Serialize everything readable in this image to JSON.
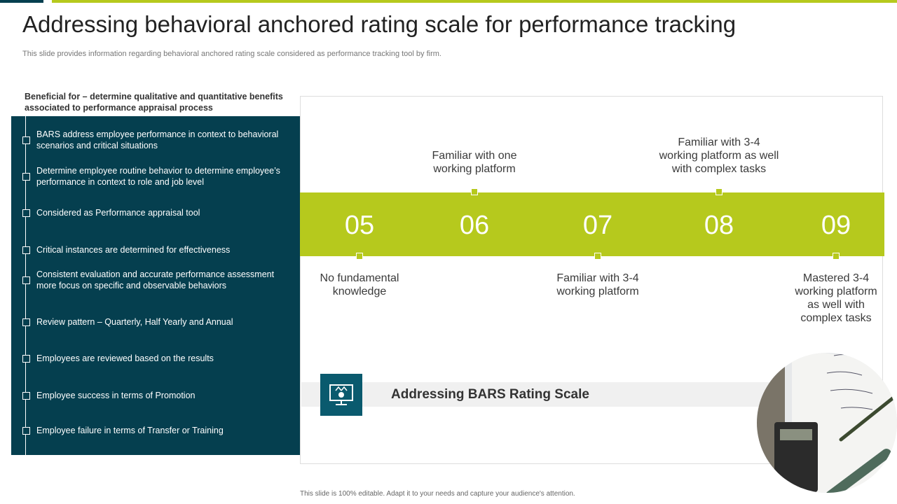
{
  "header": {
    "title": "Addressing behavioral anchored rating scale for performance tracking",
    "subtitle": "This slide provides information regarding behavioral anchored rating scale considered as performance tracking tool by firm."
  },
  "panel": {
    "heading": "Beneficial for – determine qualitative and quantitative benefits associated to performance appraisal process",
    "items": [
      "BARS address employee performance  in context to behavioral  scenarios and critical situations",
      "Determine employee routine behavior  to determine employee’s performance  in context to role and job level",
      "Considered  as Performance  appraisal tool",
      "Critical instances are determined for effectiveness",
      "Consistent evaluation  and accurate performance assessment more focus on specific and observable  behaviors",
      "Review  pattern – Quarterly, Half Yearly and Annual",
      "Employees are reviewed  based on the results",
      "Employee success in terms of Promotion",
      "Employee failure in terms of Transfer  or Training"
    ]
  },
  "scale": [
    {
      "number": "05",
      "label": "No fundamental knowledge"
    },
    {
      "number": "06",
      "label": "Familiar with one working platform"
    },
    {
      "number": "07",
      "label": "Familiar with 3-4 working platform"
    },
    {
      "number": "08",
      "label": "Familiar with 3-4 working platform as well with complex tasks"
    },
    {
      "number": "09",
      "label": "Mastered 3-4 working platform as well with complex tasks"
    }
  ],
  "caption": "Addressing BARS Rating Scale",
  "footer": "This slide is 100% editable.  Adapt it to your needs and capture your audience's attention."
}
